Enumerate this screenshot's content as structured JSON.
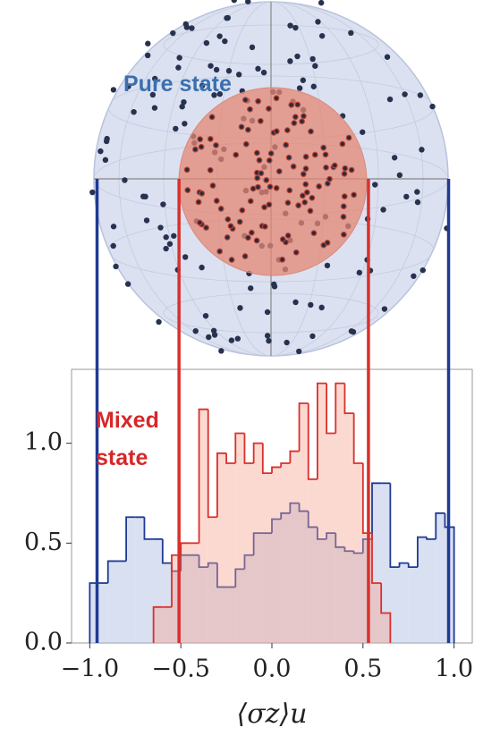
{
  "chart_data": {
    "type": "histogram",
    "annotations": {
      "pure": "Pure state",
      "mixed": [
        "Mixed",
        "state"
      ]
    },
    "x_label": "⟨σz⟩u",
    "xlim": [
      -1.1,
      1.1
    ],
    "ylim": [
      0,
      1.37
    ],
    "xticks": [
      {
        "value": -1,
        "label": "−1.0"
      },
      {
        "value": -0.5,
        "label": "−0.5"
      },
      {
        "value": 0,
        "label": "0.0"
      },
      {
        "value": 0.5,
        "label": "0.5"
      },
      {
        "value": 1,
        "label": "1.0"
      }
    ],
    "yticks": [
      {
        "value": 0,
        "label": "0.0"
      },
      0.5,
      {
        "value": 1,
        "label": "1.0"
      }
    ],
    "series": [
      {
        "color": "#1f3a93",
        "fill": "rgba(170,186,225,0.45)",
        "bins": [
          -1,
          -0.95,
          -0.9,
          -0.85,
          -0.8,
          -0.75,
          -0.7,
          -0.65,
          -0.6,
          -0.55,
          -0.5,
          -0.45,
          -0.4,
          -0.35,
          -0.3,
          -0.25,
          -0.2,
          -0.15,
          -0.1,
          -0.05,
          0,
          0.05,
          0.1,
          0.15,
          0.2,
          0.25,
          0.3,
          0.35,
          0.4,
          0.45,
          0.5,
          0.55,
          0.6,
          0.65,
          0.7,
          0.75,
          0.8,
          0.85,
          0.9,
          0.95,
          1
        ],
        "values": [
          0.3,
          0.3,
          0.41,
          0.41,
          0.63,
          0.63,
          0.52,
          0.52,
          0.4,
          0.36,
          0.44,
          0.44,
          0.38,
          0.4,
          0.28,
          0.28,
          0.37,
          0.44,
          0.55,
          0.55,
          0.62,
          0.65,
          0.7,
          0.66,
          0.58,
          0.52,
          0.55,
          0.48,
          0.46,
          0.45,
          0.52,
          0.8,
          0.8,
          0.38,
          0.4,
          0.38,
          0.53,
          0.52,
          0.65,
          0.58
        ]
      },
      {
        "color": "#d9302c",
        "fill": "rgba(245,165,145,0.42)",
        "bins": [
          -0.65,
          -0.6,
          -0.55,
          -0.5,
          -0.45,
          -0.4,
          -0.35,
          -0.3,
          -0.25,
          -0.2,
          -0.15,
          -0.1,
          -0.05,
          0,
          0.05,
          0.1,
          0.15,
          0.2,
          0.25,
          0.3,
          0.35,
          0.4,
          0.45,
          0.5,
          0.55,
          0.6,
          0.65
        ],
        "values": [
          0.18,
          0.18,
          0.44,
          0.5,
          0.5,
          1.17,
          0.63,
          0.95,
          0.9,
          1.05,
          0.9,
          1.0,
          0.85,
          0.88,
          0.9,
          0.96,
          1.2,
          0.82,
          1.3,
          1.05,
          1.3,
          1.15,
          0.9,
          0.55,
          0.3,
          0.15
        ]
      }
    ],
    "guide_lines": [
      {
        "x": -0.96,
        "color": "#1f3a93"
      },
      {
        "x": 0.97,
        "color": "#1f3a93"
      },
      {
        "x": -0.51,
        "color": "#d9302c"
      },
      {
        "x": 0.53,
        "color": "#d9302c"
      }
    ]
  }
}
